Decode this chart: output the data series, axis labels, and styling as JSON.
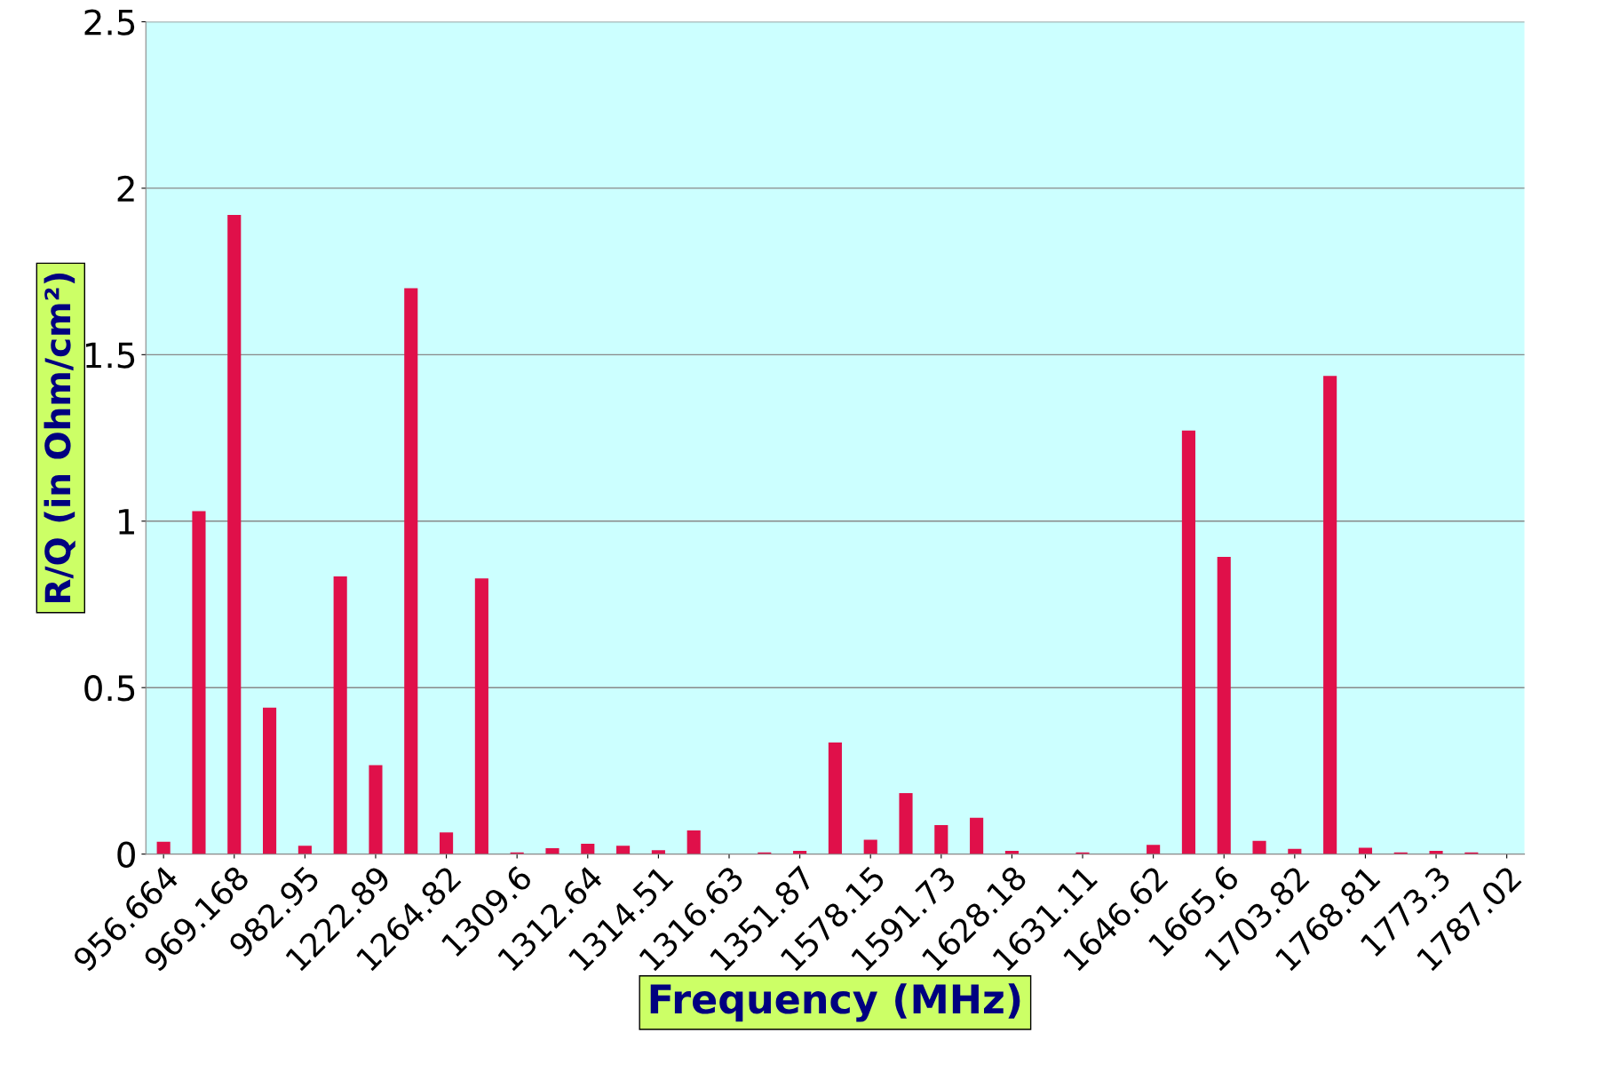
{
  "chart_data": {
    "type": "bar",
    "xlabel": "Frequency (MHz)",
    "ylabel": "R/Q (in Ohm/cm²)",
    "categories": [
      "956.664",
      null,
      "969.168",
      null,
      "982.95",
      null,
      "1222.89",
      null,
      "1264.82",
      null,
      "1309.6",
      null,
      "1312.64",
      null,
      "1314.51",
      null,
      "1316.63",
      null,
      "1351.87",
      null,
      "1578.15",
      null,
      "1591.73",
      null,
      "1628.18",
      null,
      "1631.11",
      null,
      "1646.62",
      null,
      "1665.6",
      null,
      "1703.82",
      null,
      "1768.81",
      null,
      "1773.3",
      null,
      "1787.02"
    ],
    "values": [
      0.037,
      1.03,
      1.92,
      0.44,
      0.025,
      0.834,
      0.267,
      1.7,
      0.065,
      0.828,
      0.005,
      0.018,
      0.031,
      0.025,
      0.012,
      0.071,
      0,
      0.005,
      0.01,
      0.335,
      0.043,
      0.183,
      0.087,
      0.109,
      0.01,
      0,
      0.005,
      0,
      0.028,
      1.272,
      0.893,
      0.04,
      0.016,
      1.436,
      0.019,
      0.005,
      0.01,
      0.005,
      0
    ],
    "color": "#e0104a",
    "ylim": [
      0,
      2.5
    ],
    "yticks": [
      0,
      0.5,
      1,
      1.5,
      2,
      2.5
    ],
    "grid": "y",
    "legend": false
  }
}
